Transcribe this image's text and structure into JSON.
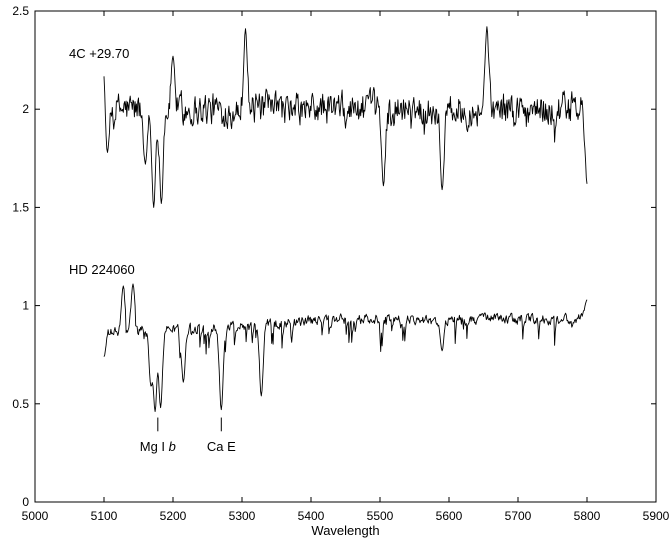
{
  "chart_data": {
    "type": "line",
    "title": "",
    "xlabel": "Wavelength",
    "ylabel": "",
    "xlim": [
      5000,
      5900
    ],
    "ylim": [
      0,
      2.5
    ],
    "grid": false,
    "xticks": [
      "5000",
      "5100",
      "5200",
      "5300",
      "5400",
      "5500",
      "5600",
      "5700",
      "5800",
      "5900"
    ],
    "yticks": [
      "0",
      "0.5",
      "1",
      "1.5",
      "2",
      "2.5"
    ],
    "series": [
      {
        "name": "4C +29.70",
        "label_at": [
          5100,
          2.28
        ],
        "x_range": [
          5100,
          5800
        ],
        "baseline": 2.0,
        "noise": 0.13,
        "features": [
          {
            "x": 5100,
            "y": 2.24
          },
          {
            "x": 5105,
            "y": 1.78
          },
          {
            "x": 5160,
            "y": 1.72
          },
          {
            "x": 5172,
            "y": 1.5
          },
          {
            "x": 5183,
            "y": 1.52
          },
          {
            "x": 5200,
            "y": 2.27
          },
          {
            "x": 5305,
            "y": 2.41
          },
          {
            "x": 5505,
            "y": 1.61
          },
          {
            "x": 5590,
            "y": 1.59
          },
          {
            "x": 5655,
            "y": 2.42
          },
          {
            "x": 5800,
            "y": 1.62
          }
        ]
      },
      {
        "name": "HD 224060",
        "label_at": [
          5100,
          1.18
        ],
        "x_range": [
          5100,
          5800
        ],
        "baseline": 0.93,
        "noise": 0.04,
        "features": [
          {
            "x": 5100,
            "y": 0.74
          },
          {
            "x": 5128,
            "y": 1.1
          },
          {
            "x": 5142,
            "y": 1.11
          },
          {
            "x": 5168,
            "y": 0.6
          },
          {
            "x": 5174,
            "y": 0.46
          },
          {
            "x": 5182,
            "y": 0.48
          },
          {
            "x": 5215,
            "y": 0.61
          },
          {
            "x": 5270,
            "y": 0.47
          },
          {
            "x": 5328,
            "y": 0.54
          },
          {
            "x": 5590,
            "y": 0.77
          },
          {
            "x": 5800,
            "y": 1.03
          }
        ]
      }
    ],
    "annotations": [
      {
        "text": "Mg I",
        "italic_text": "b",
        "x": 5178,
        "tick_y": [
          0.36,
          0.43
        ],
        "text_y": 0.28
      },
      {
        "text": "Ca E",
        "italic_text": "",
        "x": 5270,
        "tick_y": [
          0.36,
          0.43
        ],
        "text_y": 0.28
      }
    ]
  }
}
